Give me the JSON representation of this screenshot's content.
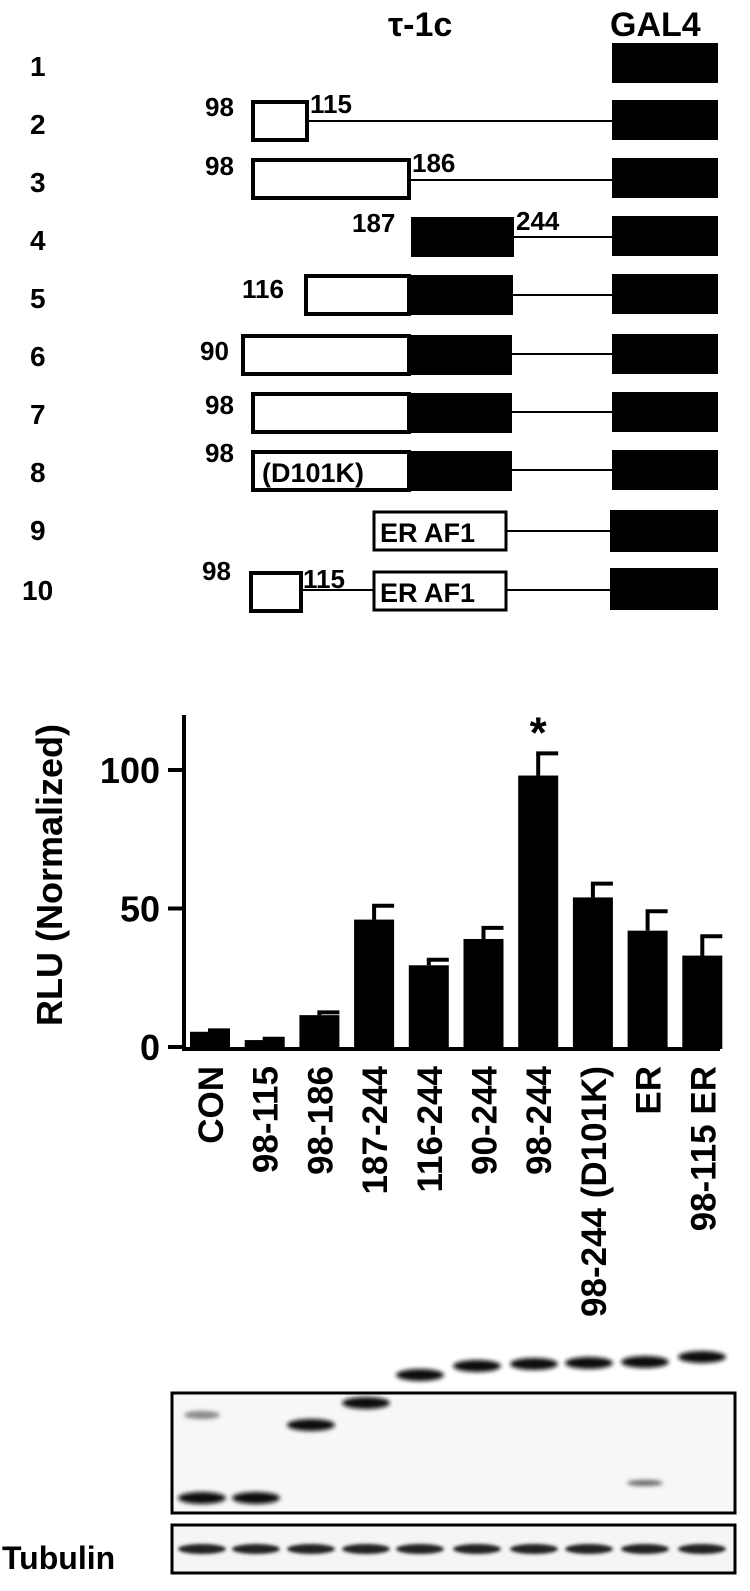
{
  "diagram": {
    "header_left": "τ-1c",
    "header_right": "GAL4",
    "rows": [
      {
        "num": "1"
      },
      {
        "num": "2",
        "left": "98",
        "right": "115"
      },
      {
        "num": "3",
        "left": "98",
        "right": "186"
      },
      {
        "num": "4",
        "left": "187",
        "right": "244"
      },
      {
        "num": "5",
        "left": "116"
      },
      {
        "num": "6",
        "left": "90"
      },
      {
        "num": "7",
        "left": "98"
      },
      {
        "num": "8",
        "left": "98",
        "box_label": "(D101K)"
      },
      {
        "num": "9",
        "box_label": "ER AF1"
      },
      {
        "num": "10",
        "left": "98",
        "right": "115",
        "box_label": "ER AF1"
      }
    ]
  },
  "chart_data": {
    "type": "bar",
    "ylabel": "RLU (Normalized)",
    "ylim": [
      0,
      120
    ],
    "yticks": [
      "0",
      "50",
      "100"
    ],
    "categories": [
      "CON",
      "98-115",
      "98-186",
      "187-244",
      "116-244",
      "90-244",
      "98-244",
      "98-244 (D101K)",
      "ER",
      "98-115 ER"
    ],
    "values": [
      5.5,
      2.5,
      11.5,
      46,
      29.5,
      39,
      98,
      54,
      42,
      33
    ],
    "errors": [
      0.5,
      0.5,
      1,
      5,
      2,
      4,
      8,
      5,
      7,
      7
    ],
    "annotation": {
      "category": "98-244",
      "text": "*"
    }
  },
  "blot": {
    "tubulin_label": "Tubulin"
  }
}
